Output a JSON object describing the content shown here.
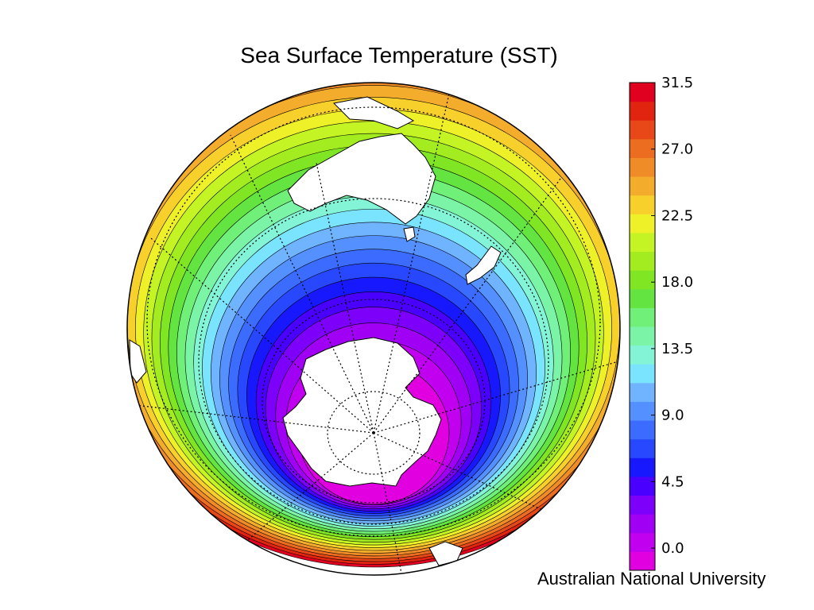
{
  "slide": {
    "title": "Sea Surface Temperature (SST)",
    "credit": "Australian National University"
  },
  "chart_data": {
    "type": "heatmap",
    "title": "Sea Surface Temperature (SST)",
    "projection": "orthographic",
    "view": "southern hemisphere, centered on the South Pole",
    "colorbar": {
      "min": -1.5,
      "max": 31.5,
      "step": 1.5,
      "ticks": [
        0.0,
        4.5,
        9.0,
        13.5,
        18.0,
        22.5,
        27.0,
        31.5
      ],
      "tick_labels": [
        "0.0",
        "4.5",
        "9.0",
        "13.5",
        "18.0",
        "22.5",
        "27.0",
        "31.5"
      ],
      "colors": [
        "#e000e0",
        "#c000ee",
        "#a000f4",
        "#7c00fa",
        "#4a00ff",
        "#1818ff",
        "#2848ff",
        "#3c6cff",
        "#5490ff",
        "#70b4ff",
        "#7ae4ff",
        "#84f4d6",
        "#7cf4a8",
        "#70f078",
        "#64e440",
        "#80e624",
        "#a2ec20",
        "#c4f424",
        "#eef028",
        "#f8d02c",
        "#f4ac2c",
        "#f08c28",
        "#ec6c20",
        "#e84818",
        "#e02410",
        "#e00020"
      ]
    },
    "grid": true,
    "land_color": "#ffffff"
  }
}
